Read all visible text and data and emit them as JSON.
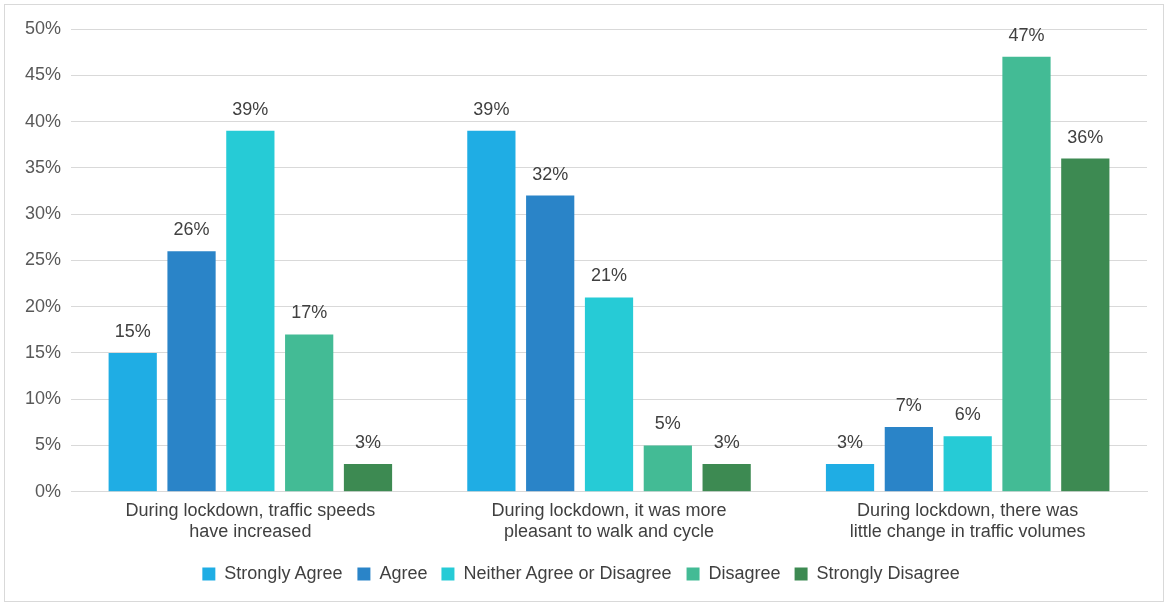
{
  "chart_data": {
    "type": "bar",
    "categories": [
      "During lockdown, traffic speeds have increased",
      "During lockdown, it was more pleasant to walk and cycle",
      "During lockdown, there was little change in traffic volumes"
    ],
    "series": [
      {
        "name": "Strongly Agree",
        "color": "#1fade4",
        "values": [
          15,
          39,
          3
        ],
        "value_labels": [
          "15%",
          "39%",
          "3%"
        ]
      },
      {
        "name": "Agree",
        "color": "#2a84c8",
        "values": [
          26,
          32,
          7
        ],
        "value_labels": [
          "26%",
          "32%",
          "7%"
        ]
      },
      {
        "name": "Neither Agree or Disagree",
        "color": "#26cbd6",
        "values": [
          39,
          21,
          6
        ],
        "value_labels": [
          "39%",
          "21%",
          "6%"
        ]
      },
      {
        "name": "Disagree",
        "color": "#43bb95",
        "values": [
          17,
          5,
          47
        ],
        "value_labels": [
          "17%",
          "5%",
          "47%"
        ]
      },
      {
        "name": "Strongly Disagree",
        "color": "#3d8a52",
        "values": [
          3,
          3,
          36
        ],
        "value_labels": [
          "3%",
          "3%",
          "36%"
        ]
      }
    ],
    "ylim": [
      0,
      50
    ],
    "yticks": [
      {
        "value": 0,
        "label": "0%"
      },
      {
        "value": 5,
        "label": "5%"
      },
      {
        "value": 10,
        "label": "10%"
      },
      {
        "value": 15,
        "label": "15%"
      },
      {
        "value": 20,
        "label": "20%"
      },
      {
        "value": 25,
        "label": "25%"
      },
      {
        "value": 30,
        "label": "30%"
      },
      {
        "value": 35,
        "label": "35%"
      },
      {
        "value": 40,
        "label": "40%"
      },
      {
        "value": 45,
        "label": "45%"
      },
      {
        "value": 50,
        "label": "50%"
      }
    ],
    "grid": "y",
    "legend": "bottom"
  }
}
